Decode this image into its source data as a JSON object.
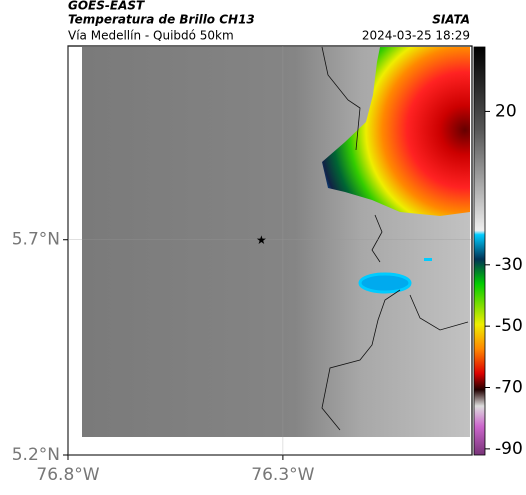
{
  "header": {
    "source": "GOES-EAST",
    "title": "Temperatura de Brillo CH13",
    "credit": "SIATA",
    "subtitle": "Vía Medellín - Quibdó 50km",
    "datetime": "2024-03-25 18:29"
  },
  "map": {
    "xlim": [
      -76.8,
      -75.86
    ],
    "ylim": [
      5.2,
      6.15
    ],
    "xticks": [
      {
        "value": -76.8,
        "label": "76.8°W"
      },
      {
        "value": -76.3,
        "label": "76.3°W"
      }
    ],
    "yticks": [
      {
        "value": 5.7,
        "label": "5.7°N"
      },
      {
        "value": 5.2,
        "label": "5.2°N"
      }
    ],
    "marker": {
      "lon": -76.35,
      "lat": 5.7
    }
  },
  "colorbar": {
    "lim": [
      -92,
      41
    ],
    "ticks": [
      20,
      -30,
      -50,
      -70,
      -90
    ]
  }
}
